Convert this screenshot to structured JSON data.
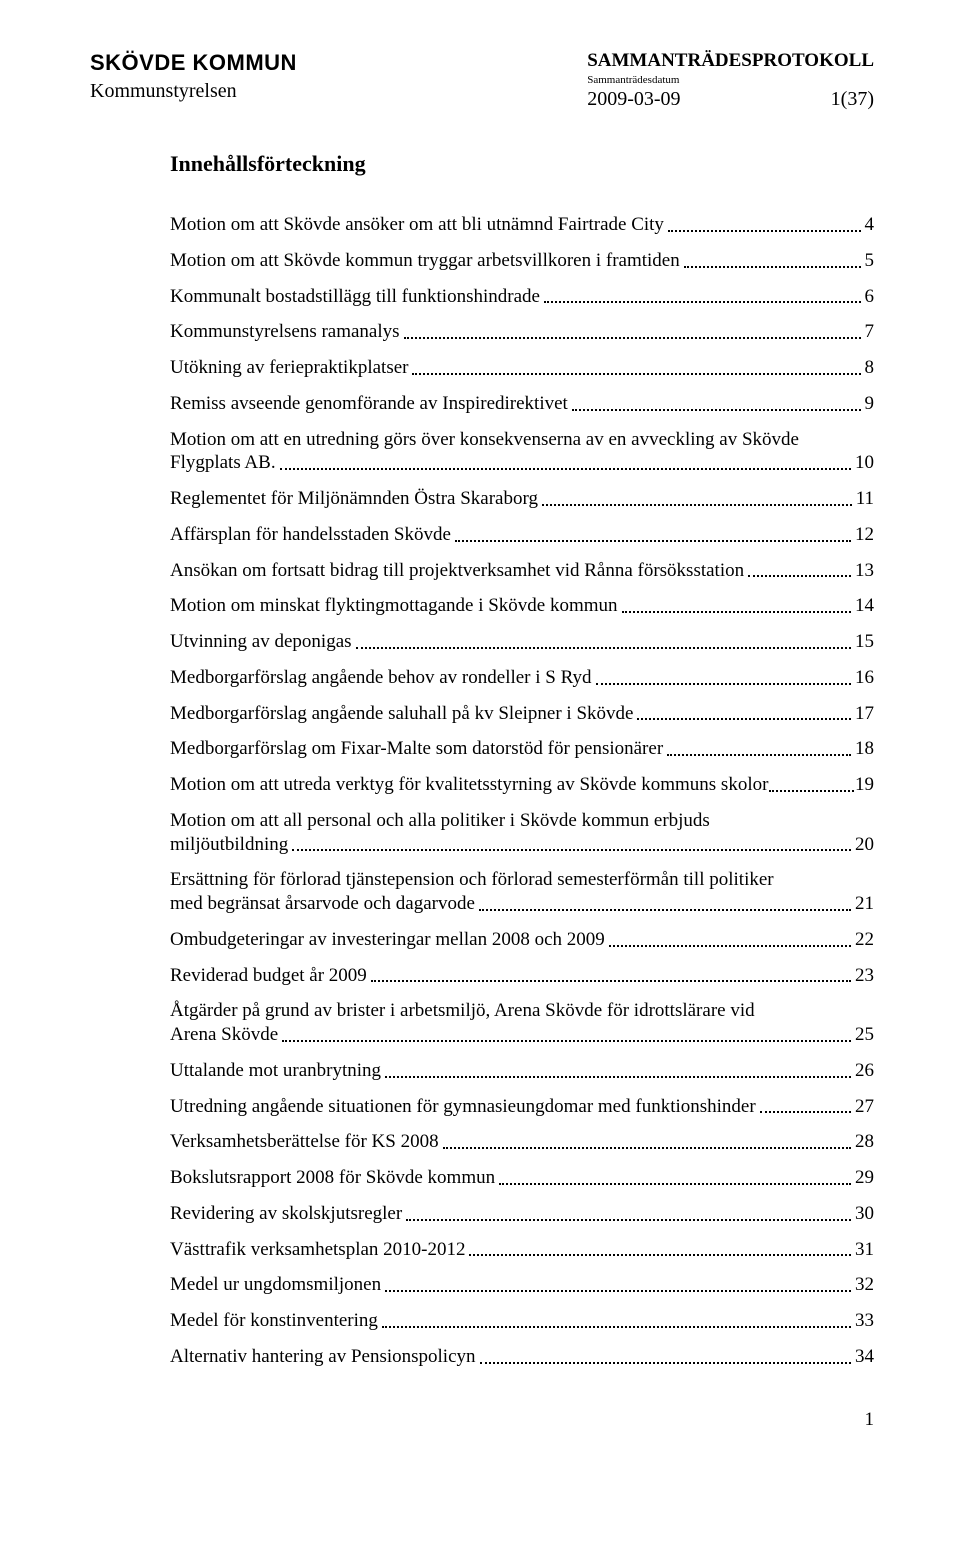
{
  "header": {
    "org_name": "SKÖVDE KOMMUN",
    "committee": "Kommunstyrelsen",
    "doc_type": "SAMMANTRÄDESPROTOKOLL",
    "date_label": "Sammanträdesdatum",
    "date": "2009-03-09",
    "page_of": "1(37)"
  },
  "toc_title": "Innehållsförteckning",
  "toc": [
    {
      "text": "Motion om att Skövde ansöker om att bli utnämnd Fairtrade City",
      "page": "4"
    },
    {
      "text": "Motion om att Skövde kommun tryggar arbetsvillkoren i  framtiden",
      "page": "5"
    },
    {
      "text": "Kommunalt bostadstillägg till funktionshindrade",
      "page": "6"
    },
    {
      "text": "Kommunstyrelsens ramanalys",
      "page": "7"
    },
    {
      "text": "Utökning av feriepraktikplatser",
      "page": "8"
    },
    {
      "text": "Remiss avseende genomförande av Inspiredirektivet",
      "page": "9"
    },
    {
      "pre": "Motion om att en utredning görs över konsekvenserna av en avveckling av Skövde",
      "text": "Flygplats AB.",
      "page": "10"
    },
    {
      "text": "Reglementet för Miljönämnden Östra Skaraborg",
      "page": "11"
    },
    {
      "text": "Affärsplan för handelsstaden Skövde",
      "page": "12"
    },
    {
      "text": "Ansökan om fortsatt bidrag till projektverksamhet vid Rånna försöksstation",
      "page": "13"
    },
    {
      "text": "Motion om minskat flyktingmottagande i Skövde kommun",
      "page": "14"
    },
    {
      "text": "Utvinning av deponigas",
      "page": "15"
    },
    {
      "text": "Medborgarförslag angående behov av rondeller i S Ryd",
      "page": "16"
    },
    {
      "text": "Medborgarförslag angående saluhall på kv Sleipner i Skövde",
      "page": "17"
    },
    {
      "text": "Medborgarförslag om Fixar-Malte som datorstöd för pensionärer",
      "page": "18"
    },
    {
      "text": "Motion om att utreda verktyg för kvalitetsstyrning av Skövde kommuns skolor",
      "page": "19",
      "tight": true
    },
    {
      "pre": "Motion om att all personal och alla politiker i Skövde kommun erbjuds",
      "text": "miljöutbildning",
      "page": "20"
    },
    {
      "pre": "Ersättning för förlorad tjänstepension och förlorad semesterförmån till politiker",
      "text": "med begränsat årsarvode och dagarvode",
      "page": "21"
    },
    {
      "text": "Ombudgeteringar av investeringar mellan 2008 och 2009",
      "page": "22"
    },
    {
      "text": "Reviderad budget år 2009",
      "page": "23"
    },
    {
      "pre": "Åtgärder på grund av brister i arbetsmiljö, Arena Skövde för idrottslärare vid",
      "text": "Arena Skövde",
      "page": "25"
    },
    {
      "text": "Uttalande mot uranbrytning",
      "page": "26"
    },
    {
      "text": "Utredning angående situationen för gymnasieungdomar med funktionshinder",
      "page": "27"
    },
    {
      "text": "Verksamhetsberättelse för KS 2008",
      "page": "28"
    },
    {
      "text": "Bokslutsrapport 2008 för Skövde kommun",
      "page": "29"
    },
    {
      "text": "Revidering av skolskjutsregler",
      "page": "30"
    },
    {
      "text": "Västtrafik verksamhetsplan 2010-2012",
      "page": "31"
    },
    {
      "text": "Medel ur ungdomsmiljonen",
      "page": "32"
    },
    {
      "text": "Medel för konstinventering",
      "page": "33"
    },
    {
      "text": "Alternativ hantering av Pensionspolicyn",
      "page": "34"
    }
  ],
  "footer_page": "1"
}
